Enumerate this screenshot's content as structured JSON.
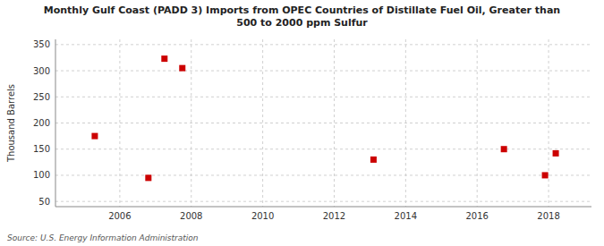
{
  "chart_data": {
    "type": "scatter",
    "title": "Monthly Gulf Coast (PADD 3) Imports from OPEC Countries of Distillate Fuel Oil, Greater than\n500 to 2000 ppm Sulfur",
    "ylabel": "Thousand Barrels",
    "source": "Source: U.S. Energy Information Administration",
    "x": [
      2005.3,
      2006.8,
      2007.25,
      2007.75,
      2013.1,
      2016.75,
      2017.9,
      2018.2
    ],
    "values": [
      175,
      95,
      323,
      305,
      130,
      150,
      100,
      142
    ],
    "color": "#cc0000",
    "marker": "square",
    "xlim": [
      2004.2,
      2019.2
    ],
    "ylim": [
      40,
      360
    ],
    "xticks": [
      2006,
      2008,
      2010,
      2012,
      2014,
      2016,
      2018
    ],
    "yticks": [
      50,
      100,
      150,
      200,
      250,
      300,
      350
    ],
    "grid": true
  }
}
